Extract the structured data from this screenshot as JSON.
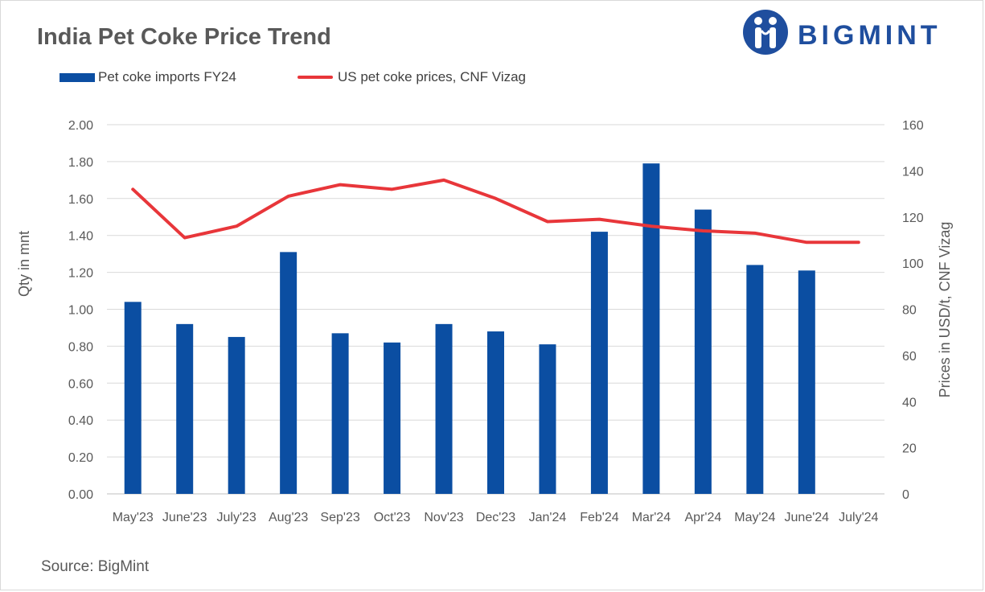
{
  "header": {
    "title": "India Pet Coke Price Trend",
    "brand": "BIGMINT"
  },
  "footer": {
    "source": "Source: BigMint"
  },
  "colors": {
    "bar": "#0b4ea2",
    "line": "#e8363a",
    "grid": "#d9d9d9",
    "text": "#595959",
    "brand": "#1f4e9e"
  },
  "chart_data": {
    "type": "bar",
    "title": "India Pet Coke Price Trend",
    "categories": [
      "May'23",
      "June'23",
      "July'23",
      "Aug'23",
      "Sep'23",
      "Oct'23",
      "Nov'23",
      "Dec'23",
      "Jan'24",
      "Feb'24",
      "Mar'24",
      "Apr'24",
      "May'24",
      "June'24",
      "July'24"
    ],
    "series": [
      {
        "name": "Pet coke imports FY24",
        "type": "bar",
        "axis": "left",
        "values": [
          1.04,
          0.92,
          0.85,
          1.31,
          0.87,
          0.82,
          0.92,
          0.88,
          0.81,
          1.42,
          1.79,
          1.54,
          1.24,
          1.21,
          null
        ]
      },
      {
        "name": "US pet coke prices, CNF Vizag",
        "type": "line",
        "axis": "right",
        "values": [
          132,
          111,
          116,
          129,
          134,
          132,
          136,
          128,
          118,
          119,
          116,
          114,
          113,
          109,
          109
        ]
      }
    ],
    "ylabel": "Qty in mnt",
    "y2label": "Prices in USD/t, CNF Vizag",
    "ylim": [
      0,
      2
    ],
    "y2lim": [
      0,
      160
    ],
    "yticks": [
      "0.00",
      "0.20",
      "0.40",
      "0.60",
      "0.80",
      "1.00",
      "1.20",
      "1.40",
      "1.60",
      "1.80",
      "2.00"
    ],
    "y2ticks": [
      "0",
      "20",
      "40",
      "60",
      "80",
      "100",
      "120",
      "140",
      "160"
    ],
    "grid": true,
    "legend": "top"
  }
}
